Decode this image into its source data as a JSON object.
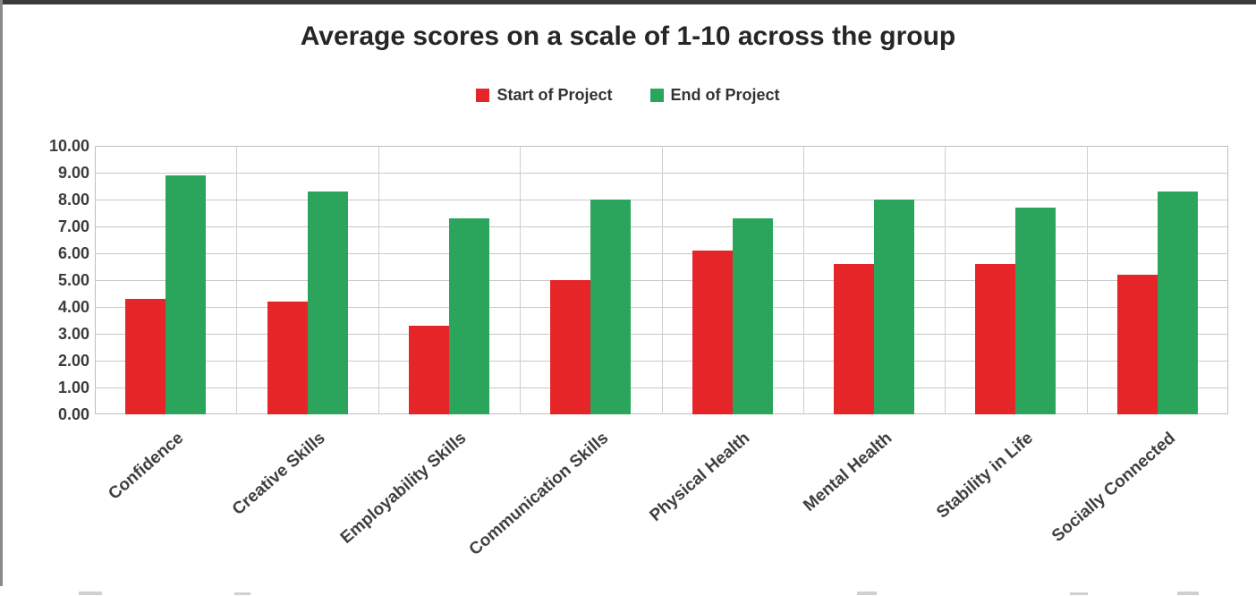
{
  "page": {
    "background": "#ffffff",
    "edge_artifacts": {
      "top_strip_color": "#3b3b3b",
      "left_line_color": "#8a8a8a"
    }
  },
  "chart_data": {
    "type": "bar",
    "title": "Average scores on a scale of 1-10 across the group",
    "categories": [
      "Confidence",
      "Creative Skills",
      "Employability Skills",
      "Communication Skills",
      "Physical Health",
      "Mental Health",
      "Stability in Life",
      "Socially Connected"
    ],
    "series": [
      {
        "name": "Start of Project",
        "color": "#e52528",
        "values": [
          4.3,
          4.2,
          3.3,
          5.0,
          6.1,
          5.6,
          5.6,
          5.2
        ]
      },
      {
        "name": "End of Project",
        "color": "#2ba55c",
        "values": [
          8.9,
          8.3,
          7.3,
          8.0,
          7.3,
          8.0,
          7.7,
          8.3
        ]
      }
    ],
    "xlabel": "",
    "ylabel": "",
    "ylim": [
      0,
      10
    ],
    "ytick_step": 1,
    "ytick_labels": [
      "10.00",
      "9.00",
      "8.00",
      "7.00",
      "6.00",
      "5.00",
      "4.00",
      "3.00",
      "2.00",
      "1.00",
      "0.00"
    ],
    "grid": true,
    "legend_position": "top-center",
    "x_label_rotation_deg": -41
  }
}
